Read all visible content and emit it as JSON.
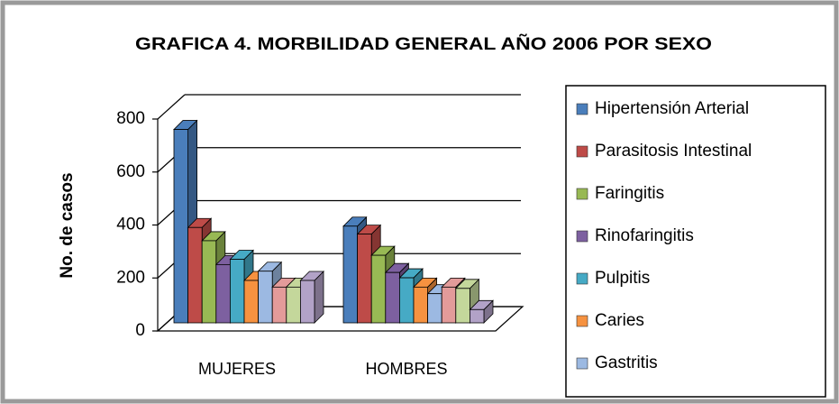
{
  "chart_data": {
    "type": "bar3d",
    "title": "GRAFICA 4.  MORBILIDAD GENERAL AÑO 2006 POR SEXO",
    "y_label": "No. de casos",
    "categories": [
      "MUJERES",
      "HOMBRES"
    ],
    "ylim": [
      0,
      800
    ],
    "yticks": [
      0,
      200,
      400,
      600,
      800
    ],
    "grid": true,
    "legend": "right",
    "series": [
      {
        "name": "Hipertensión Arterial",
        "color": "#4a7ebb",
        "values": [
          730,
          365
        ]
      },
      {
        "name": "Parasitosis Intestinal",
        "color": "#be4b48",
        "values": [
          360,
          335
        ]
      },
      {
        "name": "Faringitis",
        "color": "#98b954",
        "values": [
          310,
          255
        ]
      },
      {
        "name": "Rinofaringitis",
        "color": "#7d60a0",
        "values": [
          220,
          190
        ]
      },
      {
        "name": "Pulpitis",
        "color": "#46aac5",
        "values": [
          240,
          170
        ]
      },
      {
        "name": "Caries",
        "color": "#f69240",
        "values": [
          160,
          135
        ]
      },
      {
        "name": "Gastritis",
        "color": "#9cb9e2",
        "values": [
          195,
          110
        ]
      },
      {
        "name": null,
        "color": "#e39b9a",
        "values": [
          135,
          135
        ]
      },
      {
        "name": null,
        "color": "#c4d79b",
        "values": [
          135,
          130
        ]
      },
      {
        "name": null,
        "color": "#b2a2c7",
        "values": [
          160,
          50
        ]
      }
    ]
  }
}
